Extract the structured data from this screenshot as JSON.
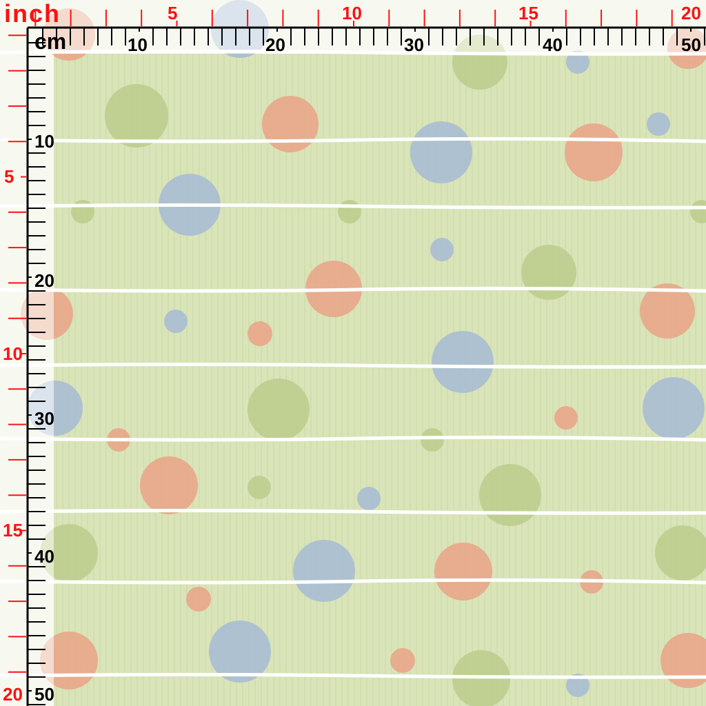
{
  "ruler": {
    "inch_label": "inch",
    "cm_label": "cm",
    "inch_top_labels": [
      "5",
      "10",
      "15",
      "20"
    ],
    "cm_top_labels": [
      "10",
      "20",
      "30",
      "40",
      "50"
    ],
    "inch_left_labels": [
      "5",
      "10",
      "15",
      "20"
    ],
    "cm_left_labels": [
      "10",
      "20",
      "30",
      "40",
      "50"
    ]
  },
  "colors": {
    "background": "#d9e4b8",
    "stripe": "#ffffff",
    "dot_orange": "#e8a68a",
    "dot_blue": "#a9bcd3",
    "dot_green": "#bccd8e",
    "inch_color": "#ff1010",
    "cm_color": "#000000"
  }
}
